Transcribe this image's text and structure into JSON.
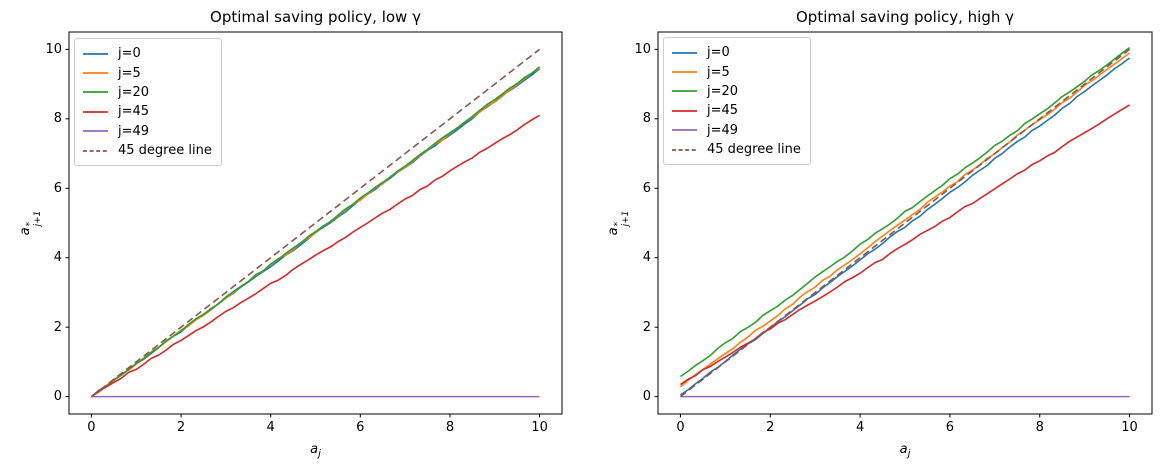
{
  "colors": {
    "background": "#ffffff",
    "axis": "#000000",
    "legend_border": "#cccccc",
    "blue": "#1f77b4",
    "orange": "#ff7f0e",
    "green": "#2ca02c",
    "red": "#d62728",
    "purple": "#9467bd",
    "brown": "#8c564b"
  },
  "chart_data": [
    {
      "type": "line",
      "title": "Optimal saving policy, low γ",
      "xlabel": {
        "base": "a",
        "sub": "j"
      },
      "ylabel": {
        "base": "a",
        "sup": "*",
        "sub": "j+1"
      },
      "xlim": [
        -0.5,
        10.5
      ],
      "ylim": [
        -0.5,
        10.5
      ],
      "xticks": [
        0,
        2,
        4,
        6,
        8,
        10
      ],
      "yticks": [
        0,
        2,
        4,
        6,
        8,
        10
      ],
      "grid": false,
      "legend_position": "upper left",
      "x": [
        0,
        1,
        2,
        3,
        4,
        5,
        6,
        7,
        8,
        9,
        10
      ],
      "series": [
        {
          "name": "j=0",
          "color": "#1f77b4",
          "dash": false,
          "values": [
            0,
            0.94,
            1.88,
            2.83,
            3.76,
            4.7,
            5.65,
            6.6,
            7.55,
            8.5,
            9.44
          ]
        },
        {
          "name": "j=5",
          "color": "#ff7f0e",
          "dash": false,
          "values": [
            0,
            0.95,
            1.89,
            2.84,
            3.79,
            4.73,
            5.68,
            6.62,
            7.57,
            8.51,
            9.46
          ]
        },
        {
          "name": "j=20",
          "color": "#2ca02c",
          "dash": false,
          "values": [
            0,
            0.95,
            1.9,
            2.85,
            3.8,
            4.75,
            5.7,
            6.65,
            7.6,
            8.55,
            9.5
          ]
        },
        {
          "name": "j=45",
          "color": "#d62728",
          "dash": false,
          "values": [
            0,
            0.81,
            1.62,
            2.43,
            3.24,
            4.05,
            4.86,
            5.67,
            6.48,
            7.29,
            8.1
          ]
        },
        {
          "name": "j=49",
          "color": "#9467bd",
          "dash": false,
          "values": [
            0,
            0,
            0,
            0,
            0,
            0,
            0,
            0,
            0,
            0,
            0
          ]
        },
        {
          "name": "45 degree line",
          "color": "#8c564b",
          "dash": true,
          "values": [
            0,
            1,
            2,
            3,
            4,
            5,
            6,
            7,
            8,
            9,
            10
          ]
        }
      ]
    },
    {
      "type": "line",
      "title": "Optimal saving policy, high γ",
      "xlabel": {
        "base": "a",
        "sub": "j"
      },
      "ylabel": {
        "base": "a",
        "sup": "*",
        "sub": "j+1"
      },
      "xlim": [
        -0.5,
        10.5
      ],
      "ylim": [
        -0.5,
        10.5
      ],
      "xticks": [
        0,
        2,
        4,
        6,
        8,
        10
      ],
      "yticks": [
        0,
        2,
        4,
        6,
        8,
        10
      ],
      "grid": false,
      "legend_position": "upper left",
      "x": [
        0,
        1,
        2,
        3,
        4,
        5,
        6,
        7,
        8,
        9,
        10
      ],
      "series": [
        {
          "name": "j=0",
          "color": "#1f77b4",
          "dash": false,
          "values": [
            0.05,
            1.02,
            1.99,
            2.96,
            3.93,
            4.9,
            5.87,
            6.84,
            7.81,
            8.78,
            9.75
          ]
        },
        {
          "name": "j=5",
          "color": "#ff7f0e",
          "dash": false,
          "values": [
            0.28,
            1.24,
            2.2,
            3.17,
            4.13,
            5.09,
            6.05,
            7.02,
            7.98,
            8.94,
            9.9
          ]
        },
        {
          "name": "j=20",
          "color": "#2ca02c",
          "dash": false,
          "values": [
            0.58,
            1.53,
            2.47,
            3.42,
            4.37,
            5.31,
            6.26,
            7.21,
            8.15,
            9.1,
            10.05
          ]
        },
        {
          "name": "j=45",
          "color": "#d62728",
          "dash": false,
          "values": [
            0.35,
            1.16,
            1.96,
            2.77,
            3.57,
            4.38,
            5.18,
            5.99,
            6.79,
            7.6,
            8.4
          ]
        },
        {
          "name": "j=49",
          "color": "#9467bd",
          "dash": false,
          "values": [
            0,
            0,
            0,
            0,
            0,
            0,
            0,
            0,
            0,
            0,
            0
          ]
        },
        {
          "name": "45 degree line",
          "color": "#8c564b",
          "dash": true,
          "values": [
            0,
            1,
            2,
            3,
            4,
            5,
            6,
            7,
            8,
            9,
            10
          ]
        }
      ]
    }
  ]
}
